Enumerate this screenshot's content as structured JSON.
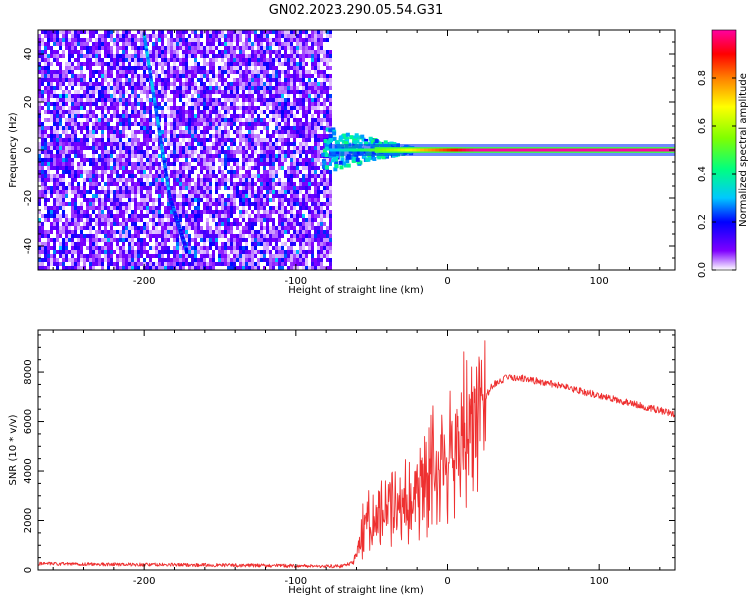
{
  "title": "GN02.2023.290.05.54.G31",
  "colors": {
    "snr_line": "#ee3030",
    "cmap": [
      "#ffffff",
      "#7f00ff",
      "#0000ff",
      "#00c8ff",
      "#00ff80",
      "#80ff00",
      "#ffff00",
      "#ff8000",
      "#ff0000",
      "#ff00a0"
    ]
  },
  "chart_data": [
    {
      "type": "heatmap",
      "xlabel": "Height of straight line (km)",
      "ylabel": "Frequency (Hz)",
      "xlim": [
        -270,
        150
      ],
      "ylim": [
        -50,
        50
      ],
      "xticks": [
        -200,
        -100,
        0,
        100
      ],
      "yticks": [
        -40,
        -20,
        0,
        20,
        40
      ],
      "colorbar": {
        "label": "Normalized spectral amplitude",
        "range": [
          0.0,
          1.0
        ],
        "ticks": [
          0.0,
          0.2,
          0.4,
          0.6,
          0.8
        ]
      },
      "features": {
        "noise_region_x": [
          -270,
          -78
        ],
        "noise_mean_amplitude": 0.1,
        "diagonal_streaks": [
          {
            "x": [
              -200,
              -183
            ],
            "y": [
              48,
              -20
            ],
            "amplitude": 0.25
          },
          {
            "x": [
              -183,
              -172
            ],
            "y": [
              -20,
              -42
            ],
            "amplitude": 0.2
          }
        ],
        "main_tone": {
          "x": [
            -78,
            150
          ],
          "y": 0,
          "amplitude_start": 0.3,
          "amplitude_end": 1.0
        }
      }
    },
    {
      "type": "line",
      "xlabel": "Height of straight line (km)",
      "ylabel": "SNR (10 * v/v)",
      "xlim": [
        -270,
        150
      ],
      "ylim": [
        0,
        9700
      ],
      "xticks": [
        -200,
        -100,
        0,
        100
      ],
      "yticks": [
        0,
        2000,
        4000,
        6000,
        8000
      ],
      "x": [
        -270,
        -200,
        -120,
        -70,
        -62,
        -55,
        -45,
        -35,
        -25,
        -15,
        -10,
        -5,
        0,
        10,
        20,
        30,
        40,
        50,
        70,
        90,
        110,
        130,
        150
      ],
      "y": [
        250,
        220,
        180,
        150,
        300,
        1800,
        2200,
        2600,
        2900,
        3800,
        4500,
        4300,
        4400,
        5200,
        6500,
        7500,
        7800,
        7750,
        7500,
        7200,
        6900,
        6600,
        6300
      ]
    }
  ]
}
